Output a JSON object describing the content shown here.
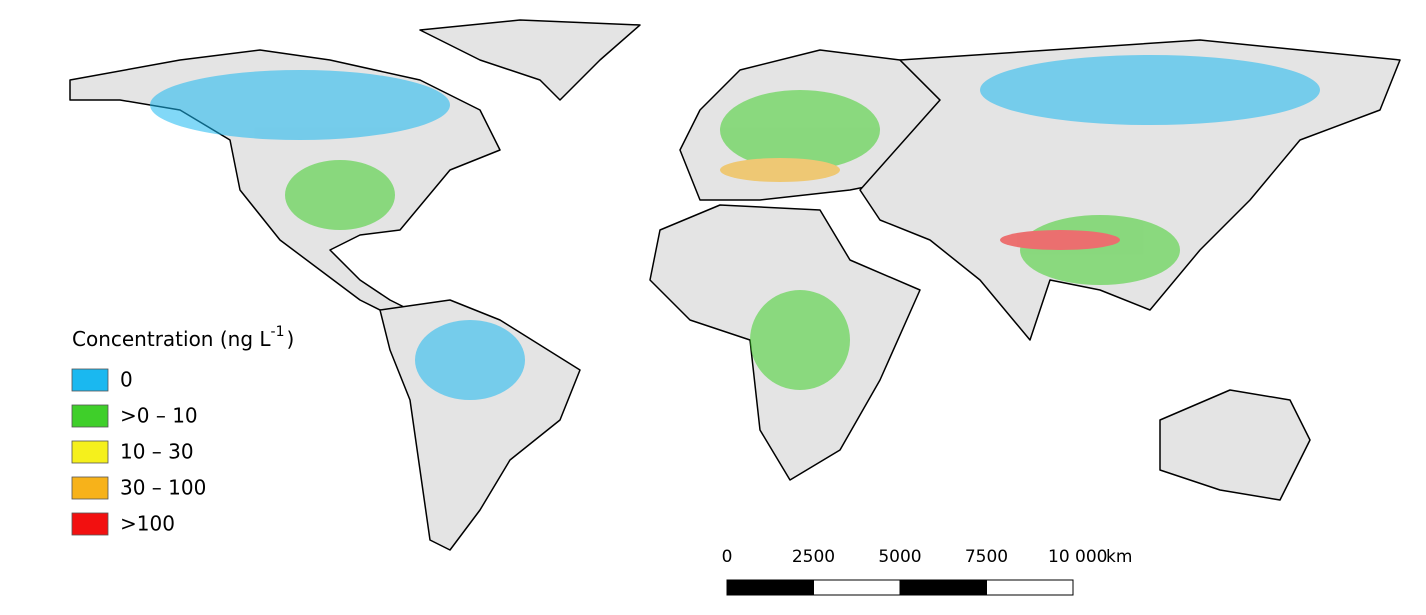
{
  "legend": {
    "title": {
      "text": "Concentration (ng L",
      "superscript": "-1",
      "suffix": ")"
    },
    "items": [
      {
        "label": "0",
        "color": "#1ab8f0"
      },
      {
        "label": ">0 – 10",
        "color": "#3fcf2a"
      },
      {
        "label": "10 – 30",
        "color": "#f5f01c"
      },
      {
        "label": "30 – 100",
        "color": "#f7b21a"
      },
      {
        "label": ">100",
        "color": "#f21010"
      }
    ]
  },
  "scale_bar": {
    "ticks": [
      "0",
      "2500",
      "5000",
      "7500",
      "10 000"
    ],
    "unit": "km"
  }
}
